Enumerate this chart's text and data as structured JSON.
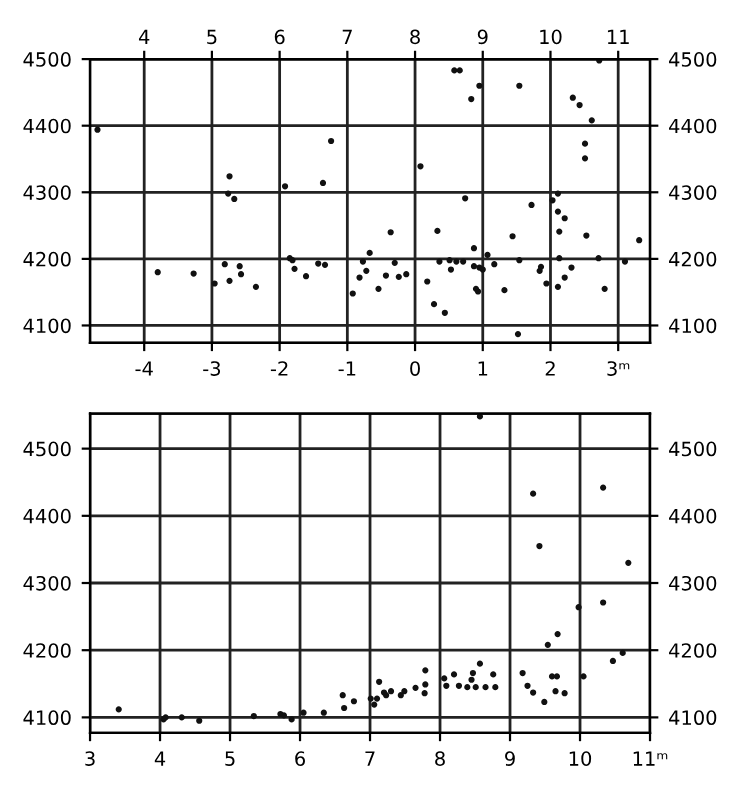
{
  "chart_data": [
    {
      "type": "scatter",
      "marker": "circle",
      "grid": true,
      "xlim": [
        -4.8,
        3.47
      ],
      "xticks": [
        -4,
        -3,
        -2,
        -1,
        0,
        1,
        2,
        {
          "value": 3,
          "label": "3ᵐ"
        }
      ],
      "x2lim": [
        3.2,
        11.47
      ],
      "x2ticks": [
        4,
        5,
        6,
        7,
        8,
        9,
        10,
        11
      ],
      "ylim": [
        4074,
        4500
      ],
      "yticks": [
        4100,
        4200,
        4300,
        4400,
        4500
      ],
      "y2lim": [
        4074,
        4500
      ],
      "y2ticks": [
        4100,
        4200,
        4300,
        4400,
        4500
      ],
      "series": [
        {
          "color": "#111111",
          "x": [
            -4.69,
            -3.8,
            -3.27,
            -2.96,
            -2.81,
            -2.74,
            -2.76,
            -2.67,
            -2.74,
            -2.59,
            -2.57,
            -2.35,
            -1.92,
            -1.85,
            -1.81,
            -1.78,
            -1.61,
            -1.43,
            -1.33,
            -1.36,
            -1.24,
            -0.92,
            -0.82,
            -0.77,
            -0.67,
            -0.72,
            -0.54,
            -0.43,
            -0.36,
            -0.3,
            -0.24,
            -0.13,
            0.08,
            0.18,
            0.28,
            0.33,
            0.36,
            0.44,
            0.51,
            0.53,
            0.58,
            0.66,
            0.61,
            0.71,
            0.74,
            0.83,
            0.87,
            0.87,
            0.9,
            0.95,
            0.95,
            0.93,
            1.0,
            1.07,
            1.17,
            1.32,
            1.44,
            1.54,
            1.52,
            1.54,
            1.72,
            1.84,
            1.86,
            1.94,
            2.03,
            2.11,
            2.11,
            2.13,
            2.13,
            2.11,
            2.21,
            2.21,
            2.31,
            2.33,
            2.43,
            2.51,
            2.51,
            2.53,
            2.61,
            2.71,
            2.72,
            2.8,
            3.1,
            3.31
          ],
          "values": [
            4394,
            4180,
            4178,
            4163,
            4192,
            4324,
            4298,
            4290,
            4167,
            4189,
            4177,
            4158,
            4309,
            4201,
            4198,
            4185,
            4174,
            4193,
            4191,
            4314,
            4377,
            4148,
            4172,
            4196,
            4209,
            4182,
            4155,
            4175,
            4240,
            4194,
            4173,
            4177,
            4339,
            4166,
            4132,
            4242,
            4196,
            4119,
            4198,
            4184,
            4483,
            4483,
            4196,
            4196,
            4291,
            4440,
            4216,
            4189,
            4155,
            4460,
            4187,
            4151,
            4184,
            4206,
            4192,
            4153,
            4234,
            4460,
            4087,
            4198,
            4281,
            4182,
            4188,
            4163,
            4288,
            4298,
            4271,
            4241,
            4201,
            4158,
            4261,
            4172,
            4187,
            4442,
            4431,
            4373,
            4351,
            4235,
            4408,
            4201,
            4498,
            4155,
            4196,
            4228
          ]
        }
      ]
    },
    {
      "type": "scatter",
      "marker": "circle",
      "grid": true,
      "xlim": [
        3,
        11
      ],
      "xticks": [
        3,
        4,
        5,
        6,
        7,
        8,
        9,
        10,
        {
          "value": 11,
          "label": "11ᵐ"
        }
      ],
      "ylim": [
        4077,
        4552
      ],
      "yticks": [
        4100,
        4200,
        4300,
        4400,
        4500
      ],
      "y2lim": [
        4077,
        4552
      ],
      "y2ticks": [
        4100,
        4200,
        4300,
        4400,
        4500
      ],
      "series": [
        {
          "color": "#111111",
          "x": [
            3.41,
            4.05,
            4.08,
            4.31,
            4.56,
            5.34,
            5.72,
            5.77,
            5.88,
            6.05,
            6.34,
            6.61,
            6.63,
            6.77,
            7.01,
            7.06,
            7.1,
            7.13,
            7.2,
            7.23,
            7.3,
            7.44,
            7.49,
            7.65,
            7.78,
            7.79,
            7.79,
            8.06,
            8.09,
            8.2,
            8.27,
            8.39,
            8.45,
            8.47,
            8.51,
            8.57,
            8.57,
            8.65,
            8.76,
            8.79,
            9.18,
            9.25,
            9.33,
            9.33,
            9.42,
            9.49,
            9.54,
            9.6,
            9.67,
            9.65,
            9.68,
            9.78,
            9.98,
            10.05,
            10.33,
            10.33,
            10.47,
            10.61,
            10.69
          ],
          "values": [
            4112,
            4097,
            4100,
            4100,
            4095,
            4102,
            4105,
            4103,
            4097,
            4107,
            4107,
            4133,
            4114,
            4124,
            4128,
            4119,
            4128,
            4153,
            4137,
            4133,
            4139,
            4133,
            4139,
            4144,
            4136,
            4149,
            4170,
            4158,
            4147,
            4164,
            4147,
            4145,
            4156,
            4166,
            4145,
            4180,
            4548,
            4145,
            4164,
            4145,
            4166,
            4147,
            4433,
            4137,
            4355,
            4123,
            4208,
            4161,
            4161,
            4139,
            4224,
            4136,
            4264,
            4161,
            4271,
            4442,
            4184,
            4196,
            4330
          ]
        }
      ]
    }
  ]
}
